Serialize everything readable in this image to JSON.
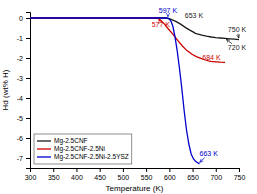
{
  "chart_data": {
    "type": "line",
    "xlabel": "Temperature (K)",
    "ylabel": "Hd (wt% H)",
    "xlim": [
      300,
      750
    ],
    "ylim": [
      -7.5,
      0.3
    ],
    "xticks": [
      300,
      350,
      400,
      450,
      500,
      550,
      600,
      650,
      700,
      750
    ],
    "yticks": [
      0,
      -1,
      -2,
      -3,
      -4,
      -5,
      -6,
      -7
    ],
    "grid": false,
    "legend": "lower left",
    "series": [
      {
        "name": "Mg-2.5CNF",
        "color": "#1a1a1a",
        "x": [
          300,
          590,
          595,
          600,
          605,
          615,
          625,
          635,
          645,
          653,
          655,
          660,
          670,
          680,
          690,
          700,
          710,
          720,
          730,
          740,
          750
        ],
        "values": [
          0.0,
          0.0,
          0.0,
          -0.03,
          -0.08,
          -0.18,
          -0.32,
          -0.48,
          -0.62,
          -0.72,
          -0.76,
          -0.8,
          -0.86,
          -0.91,
          -0.95,
          -0.98,
          -1.0,
          -1.02,
          -1.04,
          -1.06,
          -1.08
        ]
      },
      {
        "name": "Mg-2.5CNF-2.5Ni",
        "color": "#cc0000",
        "x": [
          300,
          572,
          577,
          582,
          590,
          598,
          608,
          618,
          628,
          638,
          648,
          658,
          668,
          678,
          684,
          690,
          700,
          710,
          720
        ],
        "values": [
          0.0,
          0.0,
          -0.04,
          -0.12,
          -0.32,
          -0.55,
          -0.82,
          -1.12,
          -1.4,
          -1.63,
          -1.8,
          -1.93,
          -2.02,
          -2.1,
          -2.14,
          -2.17,
          -2.19,
          -2.21,
          -2.22
        ]
      },
      {
        "name": "Mg-2.5CNF-2.5Ni-2.5YSZ",
        "color": "#0000cc",
        "x": [
          300,
          592,
          597,
          600,
          604,
          608,
          612,
          617,
          622,
          627,
          632,
          637,
          642,
          647,
          652,
          657,
          661,
          663,
          665
        ],
        "values": [
          0.0,
          0.0,
          -0.02,
          -0.06,
          -0.18,
          -0.45,
          -0.92,
          -1.65,
          -2.55,
          -3.55,
          -4.65,
          -5.6,
          -6.3,
          -6.8,
          -7.05,
          -7.18,
          -7.24,
          -7.27,
          -7.28
        ]
      }
    ],
    "annotations": [
      {
        "text": "597 K",
        "x": 597,
        "y": 0.18,
        "arrow_to": [
          597,
          0.0
        ],
        "color": "#0000cc"
      },
      {
        "text": "577 K",
        "x": 562,
        "y": -0.38,
        "arrow_to": [
          577,
          -0.04
        ],
        "color": "#cc0000"
      },
      {
        "text": "653 K",
        "x": 653,
        "y": -0.05,
        "color": "#1a1a1a"
      },
      {
        "text": "750 K",
        "x": 726,
        "y": -0.62,
        "arrow_to": [
          750,
          -1.08
        ],
        "color": "#1a1a1a"
      },
      {
        "text": "720 K",
        "x": 726,
        "y": -1.52,
        "arrow_to": [
          720,
          -1.02
        ],
        "color": "#1a1a1a"
      },
      {
        "text": "684 K",
        "x": 671,
        "y": -2.02,
        "arrow_to": [
          684,
          -2.14
        ],
        "color": "#cc0000"
      },
      {
        "text": "663 K",
        "x": 665,
        "y": -6.82,
        "arrow_to": [
          663,
          -7.27
        ],
        "color": "#0000cc"
      }
    ]
  }
}
